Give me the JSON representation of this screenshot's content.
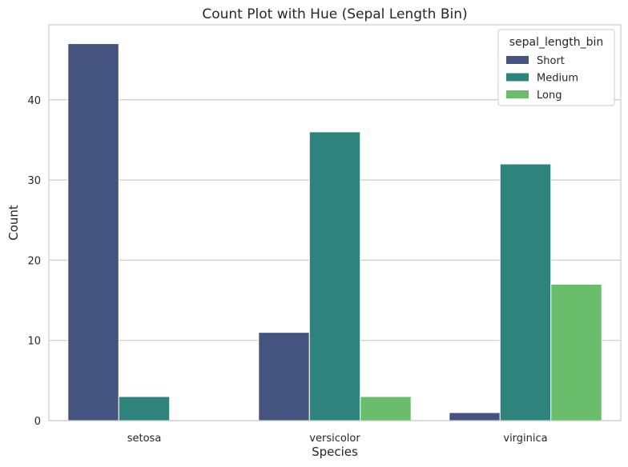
{
  "chart_data": {
    "type": "bar",
    "title": "Count Plot with Hue (Sepal Length Bin)",
    "xlabel": "Species",
    "ylabel": "Count",
    "categories": [
      "setosa",
      "versicolor",
      "virginica"
    ],
    "series": [
      {
        "name": "Short",
        "color": "#45537f",
        "values": [
          47,
          11,
          1
        ]
      },
      {
        "name": "Medium",
        "color": "#2e847d",
        "values": [
          3,
          36,
          32
        ]
      },
      {
        "name": "Long",
        "color": "#6abd6a",
        "values": [
          0,
          3,
          17
        ]
      }
    ],
    "ylim": [
      0,
      49.35
    ],
    "yticks": [
      0,
      10,
      20,
      30,
      40
    ],
    "grid": true,
    "legend": {
      "title": "sepal_length_bin",
      "position": "top-right"
    }
  }
}
